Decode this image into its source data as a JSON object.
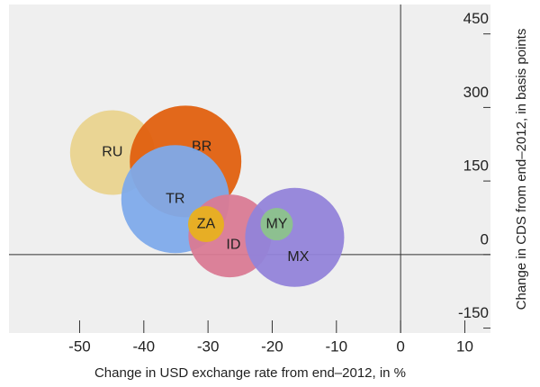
{
  "chart_data": {
    "type": "bubble",
    "xlabel": "Change in USD exchange rate from end–2012, in %",
    "ylabel": "Change in CDS from end–2012, in basis points",
    "labels": [
      "RU",
      "BR",
      "TR",
      "ID",
      "MX",
      "ZA",
      "MY"
    ],
    "x": [
      -44.9,
      -33.5,
      -35.1,
      -26.6,
      -16.5,
      -30.3,
      -19.3
    ],
    "values": [
      208,
      190,
      113,
      38,
      35,
      62,
      62
    ],
    "sizes": [
      47,
      62,
      60,
      46,
      55,
      20,
      18
    ],
    "colors": [
      "#e9d38e",
      "#e0600f",
      "#7eaaea",
      "#d97a93",
      "#9283d9",
      "#e8b11f",
      "#8cc38c"
    ],
    "xlim": [
      -61,
      14
    ],
    "xticks": [
      -50,
      -40,
      -30,
      -20,
      -10,
      0,
      10
    ],
    "ylim": [
      -160,
      510
    ],
    "yticks": [
      450,
      300,
      150,
      0,
      -150
    ]
  }
}
